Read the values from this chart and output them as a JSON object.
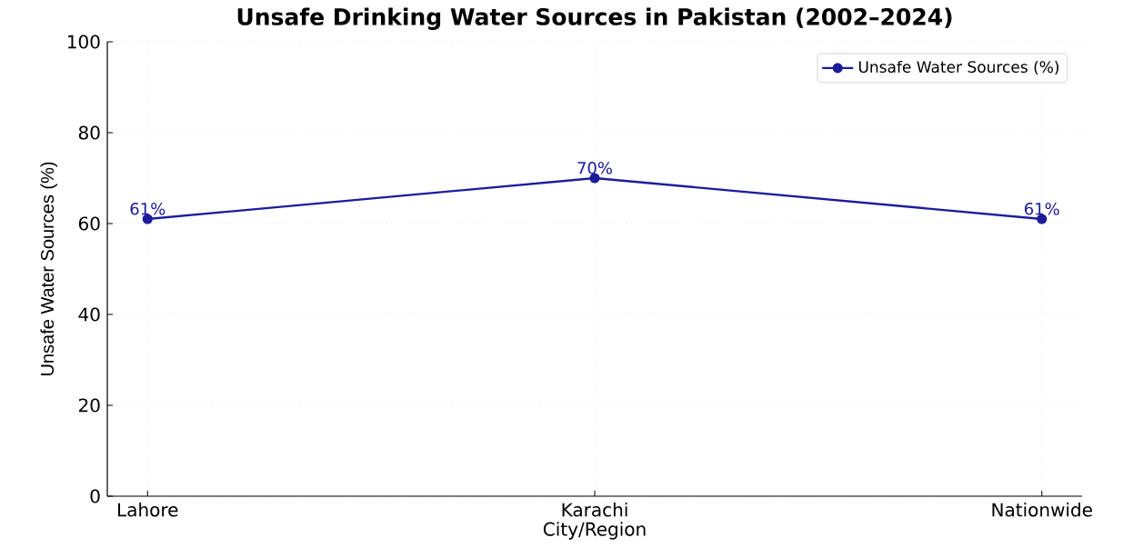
{
  "chart_data": {
    "type": "line",
    "title": "Unsafe Drinking Water Sources in Pakistan (2002–2024)",
    "xlabel": "City/Region",
    "ylabel": "Unsafe Water Sources (%)",
    "categories": [
      "Lahore",
      "Karachi",
      "Nationwide"
    ],
    "series": [
      {
        "name": "Unsafe Water Sources (%)",
        "color": "#1c1c9c",
        "values": [
          61,
          70,
          61
        ],
        "value_labels": [
          "61%",
          "70%",
          "61%"
        ]
      }
    ],
    "ylim": [
      0,
      100
    ],
    "yticks": [
      0,
      20,
      40,
      60,
      80,
      100
    ],
    "grid": true,
    "legend": "top right",
    "marker": "circle",
    "line_style": "solid"
  }
}
